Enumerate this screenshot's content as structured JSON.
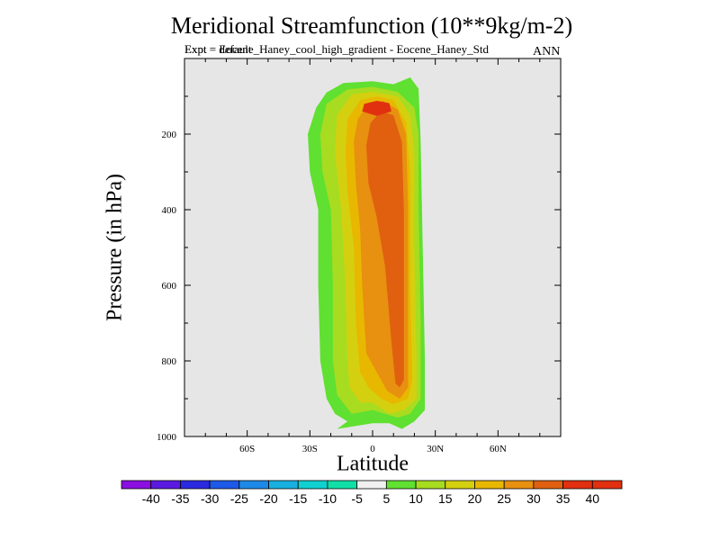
{
  "chart_data": {
    "type": "contour",
    "title": "Meridional Streamfunction (10**9kg/m-2)",
    "subtitle_overlap_a": "Expt = Eocene_Haney_cool_high_gradient - Eocene_Haney_Std",
    "subtitle_overlap_b": "Expt = default",
    "season": "ANN",
    "xlabel": "Latitude",
    "ylabel": "Pressure (in hPa)",
    "xlim": [
      -90,
      90
    ],
    "ylim": [
      1000,
      0
    ],
    "x_ticks": [
      {
        "value": -60,
        "label": "60S"
      },
      {
        "value": -30,
        "label": "30S"
      },
      {
        "value": 0,
        "label": "0"
      },
      {
        "value": 30,
        "label": "30N"
      },
      {
        "value": 60,
        "label": "60N"
      }
    ],
    "y_ticks": [
      {
        "value": 200,
        "label": "200"
      },
      {
        "value": 400,
        "label": "400"
      },
      {
        "value": 600,
        "label": "600"
      },
      {
        "value": 800,
        "label": "800"
      },
      {
        "value": 1000,
        "label": "1000"
      }
    ],
    "colorbar": {
      "labels": [
        "-40",
        "-35",
        "-30",
        "-25",
        "-20",
        "-15",
        "-10",
        "-5",
        "5",
        "10",
        "15",
        "20",
        "25",
        "30",
        "35",
        "40"
      ],
      "colors": [
        "#8a0fe0",
        "#5a1ae0",
        "#2a2ae0",
        "#1e5ae8",
        "#1e8ae8",
        "#18b0e0",
        "#10d0d0",
        "#10e0a8",
        "#f0f0f0",
        "#60e030",
        "#a8dc20",
        "#d4d010",
        "#e8b800",
        "#e89010",
        "#e06010",
        "#e03010",
        "#e03010"
      ]
    },
    "contour_regions": [
      {
        "level": "5-10",
        "color": "#60e030",
        "outline": [
          [
            -17,
            980
          ],
          [
            -12,
            960
          ],
          [
            -18,
            940
          ],
          [
            -22,
            900
          ],
          [
            -25,
            800
          ],
          [
            -26,
            600
          ],
          [
            -26,
            400
          ],
          [
            -30,
            300
          ],
          [
            -31,
            200
          ],
          [
            -27,
            130
          ],
          [
            -22,
            90
          ],
          [
            -14,
            65
          ],
          [
            0,
            60
          ],
          [
            10,
            68
          ],
          [
            18,
            50
          ],
          [
            22,
            80
          ],
          [
            23,
            220
          ],
          [
            24,
            500
          ],
          [
            25,
            800
          ],
          [
            25,
            930
          ],
          [
            20,
            960
          ],
          [
            14,
            980
          ],
          [
            8,
            965
          ],
          [
            0,
            965
          ]
        ]
      },
      {
        "level": "10-15",
        "color": "#a8dc20",
        "outline": [
          [
            -10,
            940
          ],
          [
            -17,
            890
          ],
          [
            -19,
            800
          ],
          [
            -19,
            600
          ],
          [
            -20,
            400
          ],
          [
            -24,
            300
          ],
          [
            -25,
            200
          ],
          [
            -22,
            120
          ],
          [
            -12,
            82
          ],
          [
            0,
            75
          ],
          [
            12,
            88
          ],
          [
            20,
            130
          ],
          [
            22,
            200
          ],
          [
            22,
            400
          ],
          [
            23,
            700
          ],
          [
            23,
            900
          ],
          [
            18,
            940
          ],
          [
            12,
            950
          ],
          [
            0,
            930
          ]
        ]
      },
      {
        "level": "15-20",
        "color": "#d4d010",
        "outline": [
          [
            -6,
            910
          ],
          [
            -11,
            870
          ],
          [
            -12,
            800
          ],
          [
            -13,
            600
          ],
          [
            -15,
            400
          ],
          [
            -18,
            250
          ],
          [
            -17,
            150
          ],
          [
            -10,
            95
          ],
          [
            0,
            88
          ],
          [
            12,
            100
          ],
          [
            18,
            150
          ],
          [
            20,
            250
          ],
          [
            20,
            500
          ],
          [
            21,
            800
          ],
          [
            21,
            900
          ],
          [
            15,
            930
          ],
          [
            8,
            940
          ],
          [
            0,
            910
          ]
        ]
      },
      {
        "level": "20-25",
        "color": "#e8b800",
        "outline": [
          [
            -2,
            870
          ],
          [
            -6,
            830
          ],
          [
            -8,
            700
          ],
          [
            -9,
            500
          ],
          [
            -12,
            350
          ],
          [
            -13,
            250
          ],
          [
            -12,
            160
          ],
          [
            -6,
            110
          ],
          [
            2,
            100
          ],
          [
            10,
            110
          ],
          [
            16,
            170
          ],
          [
            18,
            300
          ],
          [
            18,
            600
          ],
          [
            19,
            850
          ],
          [
            17,
            900
          ],
          [
            10,
            915
          ],
          [
            4,
            900
          ]
        ]
      },
      {
        "level": "25-30",
        "color": "#e89010",
        "outline": [
          [
            3,
            840
          ],
          [
            -3,
            780
          ],
          [
            -5,
            600
          ],
          [
            -6,
            450
          ],
          [
            -8,
            330
          ],
          [
            -9,
            220
          ],
          [
            -7,
            160
          ],
          [
            -2,
            120
          ],
          [
            5,
            112
          ],
          [
            12,
            135
          ],
          [
            16,
            200
          ],
          [
            17,
            400
          ],
          [
            17,
            700
          ],
          [
            17,
            870
          ],
          [
            13,
            900
          ],
          [
            7,
            880
          ]
        ]
      },
      {
        "level": "30-35",
        "color": "#e06010",
        "outline": [
          [
            11,
            860
          ],
          [
            9,
            750
          ],
          [
            6,
            550
          ],
          [
            2,
            420
          ],
          [
            -2,
            330
          ],
          [
            -3,
            230
          ],
          [
            -1,
            170
          ],
          [
            4,
            140
          ],
          [
            10,
            150
          ],
          [
            14,
            220
          ],
          [
            15,
            400
          ],
          [
            15,
            650
          ],
          [
            15,
            850
          ],
          [
            13,
            870
          ]
        ]
      },
      {
        "level": "35-40",
        "color": "#e03010",
        "outline": [
          [
            -5,
            140
          ],
          [
            -4,
            120
          ],
          [
            2,
            112
          ],
          [
            8,
            118
          ],
          [
            9,
            140
          ],
          [
            2,
            152
          ]
        ]
      }
    ]
  }
}
